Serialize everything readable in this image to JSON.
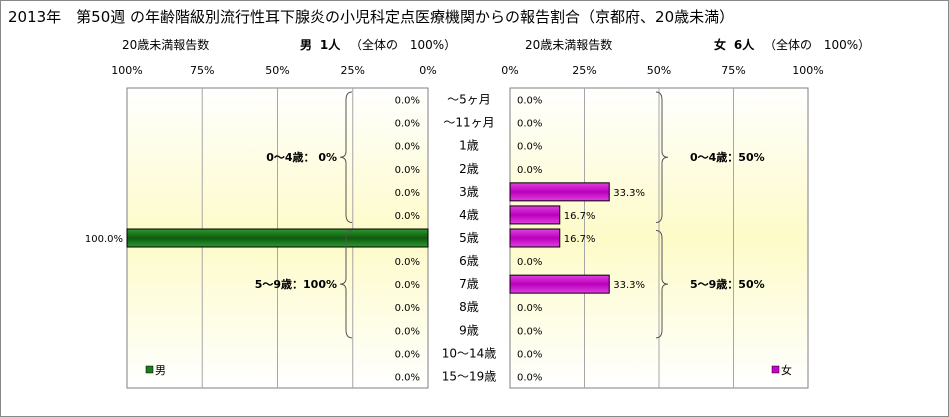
{
  "title": "2013年　第50週 の年齢階級別流行性耳下腺炎の小児科定点医療機関からの報告割合（京都府、20歳未満）",
  "male_header": {
    "reports_label": "20歳未満報告数",
    "sex": "男",
    "count": "1人",
    "total_label": "（全体の",
    "total_pct": "100%）"
  },
  "female_header": {
    "reports_label": "20歳未満報告数",
    "sex": "女",
    "count": "6人",
    "total_label": "（全体の",
    "total_pct": "100%）"
  },
  "chart_data": {
    "type": "bar",
    "orientation": "horizontal-pyramid",
    "categories": [
      "～5ヶ月",
      "～11ヶ月",
      "1歳",
      "2歳",
      "3歳",
      "4歳",
      "5歳",
      "6歳",
      "7歳",
      "8歳",
      "9歳",
      "10～14歳",
      "15～19歳"
    ],
    "male": {
      "name": "男",
      "color": "#1e7a1e",
      "values": [
        0,
        0,
        0,
        0,
        0,
        0,
        100,
        0,
        0,
        0,
        0,
        0,
        0
      ],
      "labels": [
        "0.0%",
        "0.0%",
        "0.0%",
        "0.0%",
        "0.0%",
        "0.0%",
        "100.0%",
        "0.0%",
        "0.0%",
        "0.0%",
        "0.0%",
        "0.0%",
        "0.0%"
      ],
      "axis_ticks": [
        "100%",
        "75%",
        "50%",
        "25%",
        "0%"
      ],
      "groups": [
        {
          "label": "0～4歳：  0%",
          "from": 0,
          "to": 5
        },
        {
          "label": "5～9歳：100%",
          "from": 6,
          "to": 10
        }
      ]
    },
    "female": {
      "name": "女",
      "color": "#cc00cc",
      "values": [
        0,
        0,
        0,
        0,
        33.3,
        16.7,
        16.7,
        0,
        33.3,
        0,
        0,
        0,
        0
      ],
      "labels": [
        "0.0%",
        "0.0%",
        "0.0%",
        "0.0%",
        "33.3%",
        "16.7%",
        "16.7%",
        "0.0%",
        "33.3%",
        "0.0%",
        "0.0%",
        "0.0%",
        "0.0%"
      ],
      "axis_ticks": [
        "0%",
        "25%",
        "50%",
        "75%",
        "100%"
      ],
      "groups": [
        {
          "label": "0～4歳：50%",
          "from": 0,
          "to": 5
        },
        {
          "label": "5～9歳：50%",
          "from": 6,
          "to": 10
        }
      ]
    },
    "xlim": [
      0,
      100
    ],
    "grid": true,
    "legend": "bottom-left / bottom-right"
  }
}
